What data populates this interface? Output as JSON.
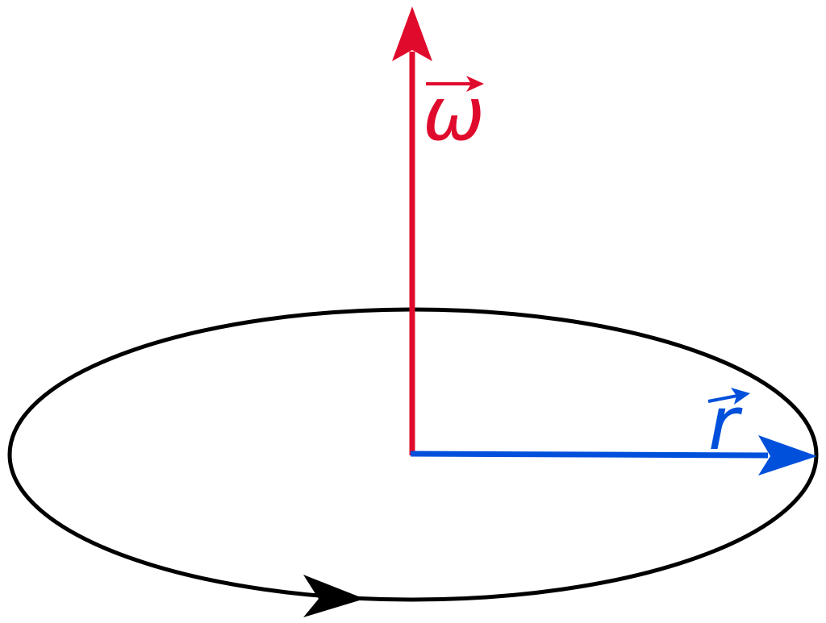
{
  "diagram": {
    "orbit": {
      "stroke_color": "#000000",
      "direction": "counterclockwise-viewed-from-above",
      "arrowhead": "arrowhead-icon"
    },
    "angular_velocity": {
      "symbol": "ω",
      "vector_arrow": "vector-arrow-icon",
      "color": "#e00b2c",
      "direction": "up"
    },
    "radius": {
      "symbol": "r",
      "vector_arrow": "vector-arrow-icon",
      "color": "#0050dc",
      "direction": "right"
    }
  }
}
